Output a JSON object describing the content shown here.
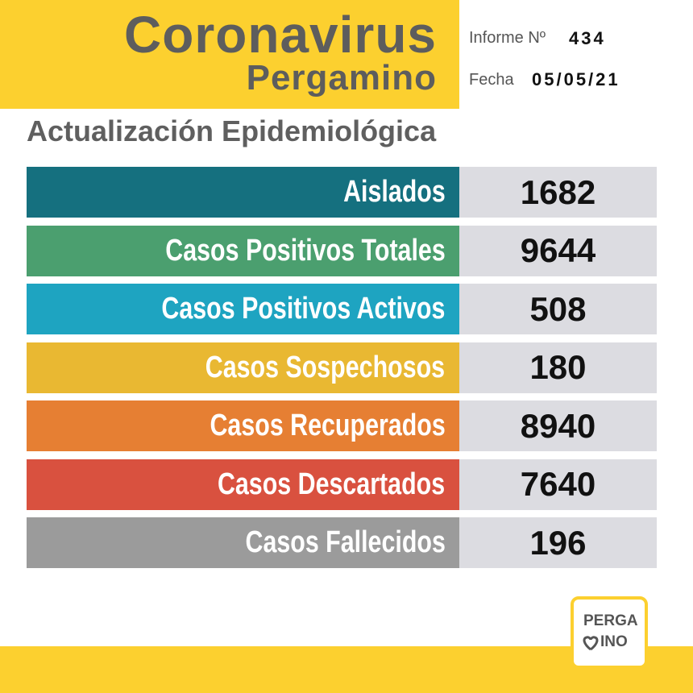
{
  "header": {
    "title": "Coronavirus",
    "subtitle": "Pergamino",
    "report_label": "Informe Nº",
    "report_number": "434",
    "date_label": "Fecha",
    "date": "05/05/21"
  },
  "section_title": "Actualización Epidemiológica",
  "rows": [
    {
      "label": "Aislados",
      "value": 1682,
      "color": "#15707f"
    },
    {
      "label": "Casos Positivos Totales",
      "value": 9644,
      "color": "#4b9f6f"
    },
    {
      "label": "Casos Positivos Activos",
      "value": 508,
      "color": "#1ea4c1"
    },
    {
      "label": "Casos Sospechosos",
      "value": 180,
      "color": "#e9b832"
    },
    {
      "label": "Casos Recuperados",
      "value": 8940,
      "color": "#e67f33"
    },
    {
      "label": "Casos Descartados",
      "value": 7640,
      "color": "#d9513f"
    },
    {
      "label": "Casos Fallecidos",
      "value": 196,
      "color": "#9b9b9b"
    }
  ],
  "logo": {
    "top": "PERGA",
    "bottom": "INO"
  }
}
